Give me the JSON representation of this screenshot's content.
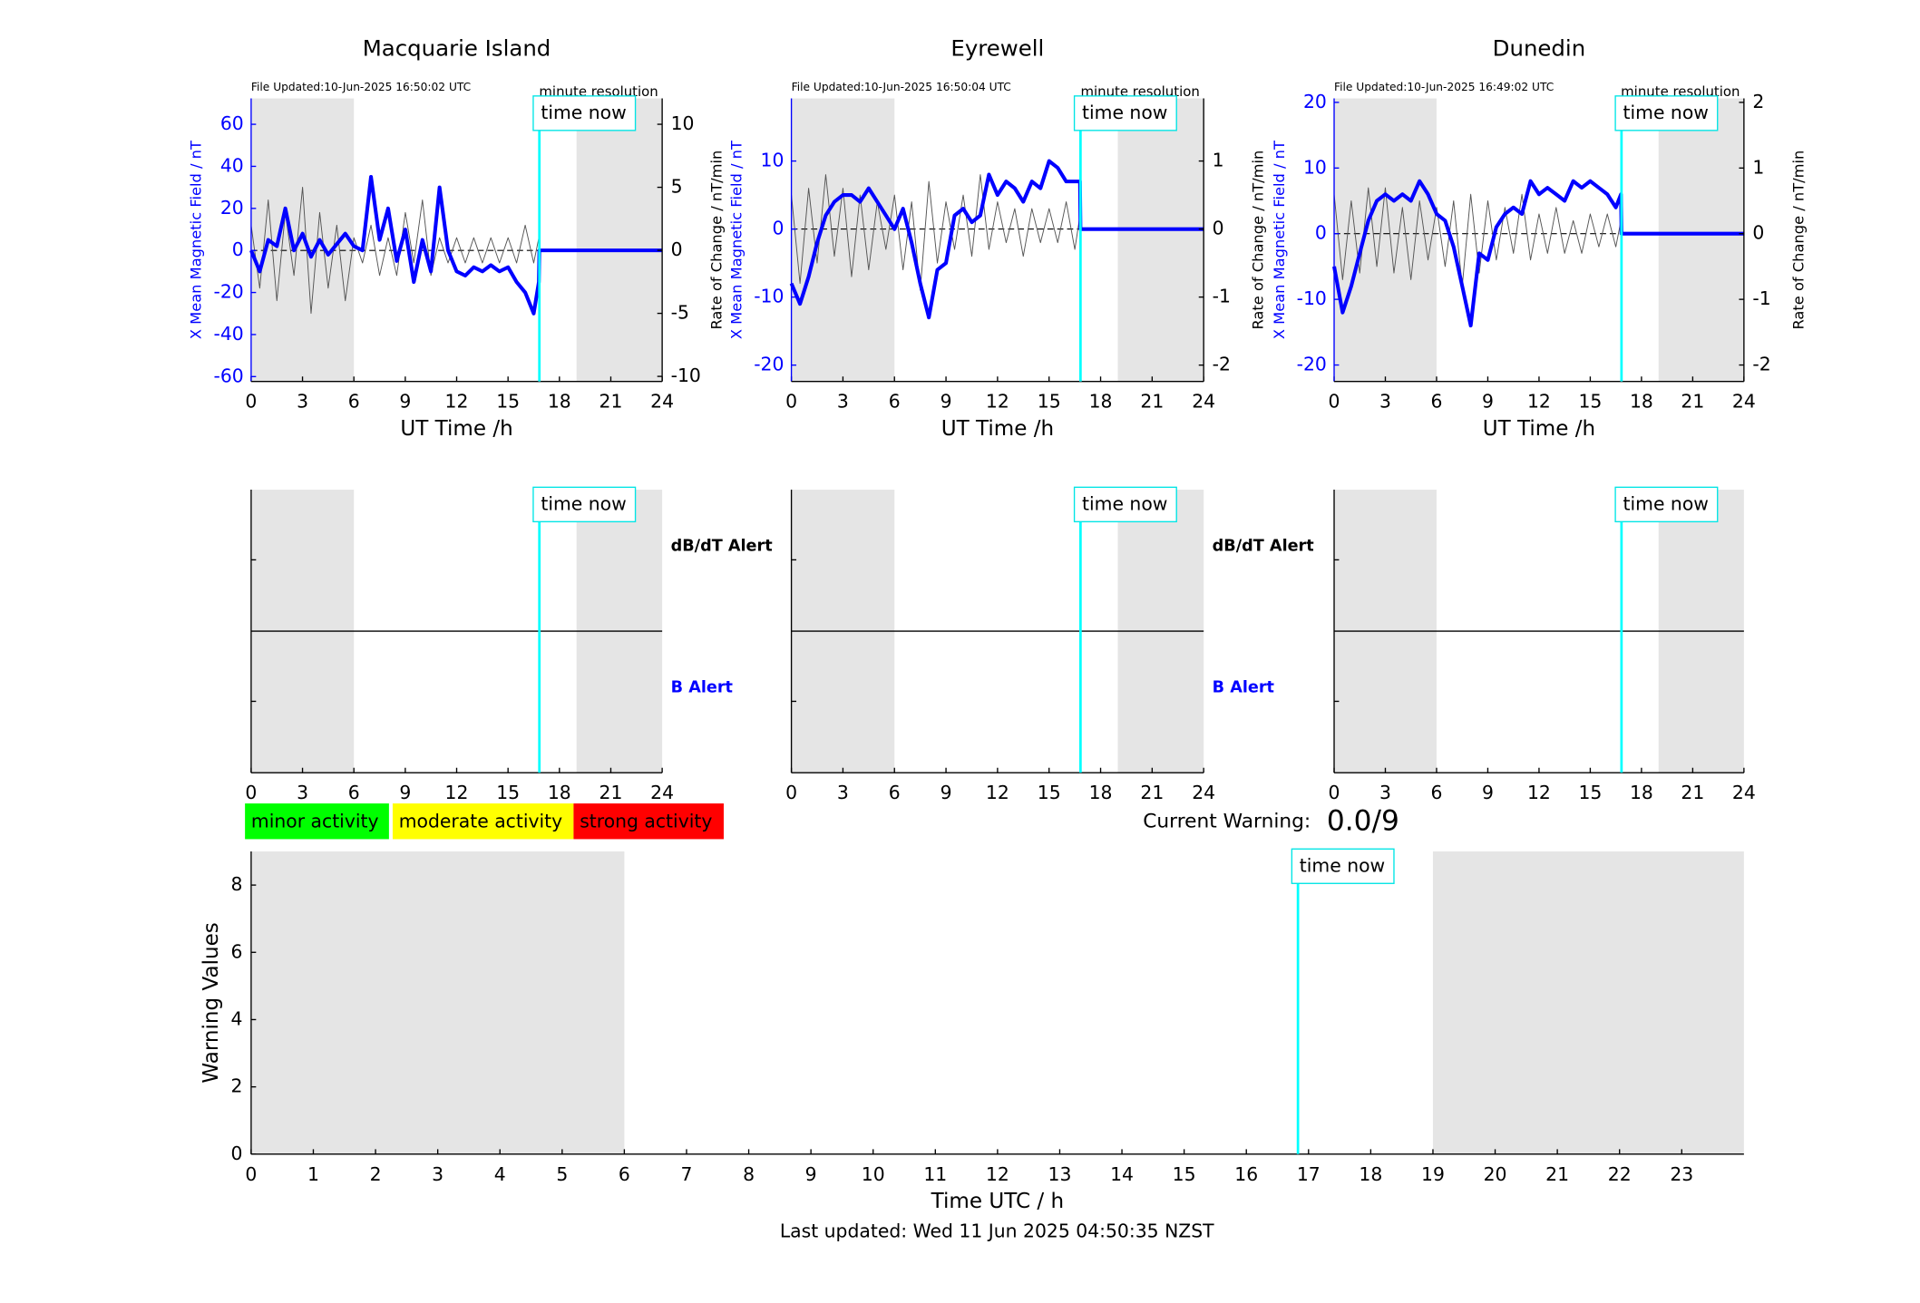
{
  "chart_data": [
    {
      "type": "line",
      "title": "Macquarie Island",
      "file_updated": "File Updated:10-Jun-2025 16:50:02 UTC",
      "resolution": "minute resolution",
      "xlabel": "UT Time /h",
      "xlim": [
        0,
        24
      ],
      "xticks": [
        0,
        3,
        6,
        9,
        12,
        15,
        18,
        21,
        24
      ],
      "ylim": [
        -62.3,
        72.3
      ],
      "yticks": [
        -60,
        -40,
        -20,
        0,
        20,
        40,
        60
      ],
      "y2lim": [
        -10.4,
        12.05
      ],
      "y2ticks": [
        -10,
        -5,
        0,
        5,
        10
      ],
      "shaded": [
        [
          0,
          6
        ],
        [
          19,
          24
        ]
      ],
      "time_now": {
        "value": 16.83,
        "label": "time now"
      },
      "x": [
        0,
        0.5,
        1,
        1.5,
        2,
        2.5,
        3,
        3.5,
        4,
        4.5,
        5,
        5.5,
        6,
        6.5,
        7,
        7.5,
        8,
        8.5,
        9,
        9.5,
        10,
        10.5,
        11,
        11.5,
        12,
        12.5,
        13,
        13.5,
        14,
        14.5,
        15,
        15.5,
        16,
        16.5,
        16.8,
        16.83,
        24
      ],
      "series": [
        {
          "name": "Rate of Change / nT/min",
          "color": "#555555",
          "axis": "y2",
          "values": [
            2,
            -3,
            4,
            -4,
            3,
            -2,
            5,
            -5,
            3,
            -3,
            2,
            -4,
            1,
            -1,
            2,
            -2,
            1,
            -2,
            3,
            -1,
            4,
            -2,
            1,
            -1,
            1,
            -1,
            1,
            -1,
            1,
            -1,
            1,
            -1,
            2,
            -1,
            1,
            null,
            null
          ]
        },
        {
          "name": "X Mean Magnetic Field / nT",
          "color": "#0000ff",
          "values": [
            0,
            -10,
            5,
            2,
            20,
            0,
            8,
            -3,
            5,
            -2,
            3,
            8,
            2,
            0,
            35,
            5,
            20,
            -5,
            10,
            -15,
            5,
            -10,
            30,
            0,
            -10,
            -12,
            -8,
            -10,
            -7,
            -10,
            -8,
            -15,
            -20,
            -30,
            -15,
            0,
            0
          ]
        }
      ]
    },
    {
      "type": "line",
      "title": "Eyrewell",
      "file_updated": "File Updated:10-Jun-2025 16:50:04 UTC",
      "resolution": "minute resolution",
      "xlabel": "UT Time /h",
      "xlim": [
        0,
        24
      ],
      "xticks": [
        0,
        3,
        6,
        9,
        12,
        15,
        18,
        21,
        24
      ],
      "ylim": [
        -22.4,
        19.2
      ],
      "yticks": [
        -20,
        -10,
        0,
        10
      ],
      "y2lim": [
        -2.24,
        1.92
      ],
      "y2ticks": [
        -2,
        -1,
        0,
        1
      ],
      "shaded": [
        [
          0,
          6
        ],
        [
          19,
          24
        ]
      ],
      "time_now": {
        "value": 16.83,
        "label": "time now"
      },
      "x": [
        0,
        0.5,
        1,
        1.5,
        2,
        2.5,
        3,
        3.5,
        4,
        4.5,
        5,
        5.5,
        6,
        6.5,
        7,
        7.5,
        8,
        8.5,
        9,
        9.5,
        10,
        10.5,
        11,
        11.5,
        12,
        12.5,
        13,
        13.5,
        14,
        14.5,
        15,
        15.5,
        16,
        16.5,
        16.8,
        16.83,
        24
      ],
      "series": [
        {
          "name": "Rate of Change / nT/min",
          "color": "#555555",
          "axis": "y2",
          "values": [
            0.5,
            -0.8,
            0.6,
            -0.5,
            0.8,
            -0.4,
            0.6,
            -0.7,
            0.5,
            -0.6,
            0.4,
            -0.3,
            0.5,
            -0.6,
            0.4,
            -0.9,
            0.7,
            -0.5,
            0.4,
            -0.3,
            0.5,
            -0.4,
            0.8,
            -0.3,
            0.4,
            -0.2,
            0.3,
            -0.4,
            0.3,
            -0.2,
            0.3,
            -0.2,
            0.4,
            -0.3,
            0.2,
            null,
            null
          ]
        },
        {
          "name": "X Mean Magnetic Field / nT",
          "color": "#0000ff",
          "values": [
            -8,
            -11,
            -7,
            -2,
            2,
            4,
            5,
            5,
            4,
            6,
            4,
            2,
            0,
            3,
            -2,
            -8,
            -13,
            -6,
            -5,
            2,
            3,
            1,
            2,
            8,
            5,
            7,
            6,
            4,
            7,
            6,
            10,
            9,
            7,
            7,
            7,
            0,
            0
          ]
        }
      ]
    },
    {
      "type": "line",
      "title": "Dunedin",
      "file_updated": "File Updated:10-Jun-2025 16:49:02 UTC",
      "resolution": "minute resolution",
      "xlabel": "UT Time /h",
      "xlim": [
        0,
        24
      ],
      "xticks": [
        0,
        3,
        6,
        9,
        12,
        15,
        18,
        21,
        24
      ],
      "ylim": [
        -22.5,
        20.6
      ],
      "yticks": [
        -20,
        -10,
        0,
        10,
        20
      ],
      "y2lim": [
        -2.25,
        2.06
      ],
      "y2ticks": [
        -2,
        -1,
        0,
        1,
        2
      ],
      "shaded": [
        [
          0,
          6
        ],
        [
          19,
          24
        ]
      ],
      "time_now": {
        "value": 16.83,
        "label": "time now"
      },
      "x": [
        0,
        0.5,
        1,
        1.5,
        2,
        2.5,
        3,
        3.5,
        4,
        4.5,
        5,
        5.5,
        6,
        6.5,
        7,
        7.5,
        8,
        8.5,
        9,
        9.5,
        10,
        10.5,
        11,
        11.5,
        12,
        12.5,
        13,
        13.5,
        14,
        14.5,
        15,
        15.5,
        16,
        16.5,
        16.8,
        16.83,
        24
      ],
      "series": [
        {
          "name": "Rate of Change / nT/min",
          "color": "#555555",
          "axis": "y2",
          "values": [
            0.6,
            -0.7,
            0.5,
            -0.6,
            0.7,
            -0.5,
            0.7,
            -0.6,
            0.4,
            -0.7,
            0.5,
            -0.4,
            0.4,
            -0.5,
            0.5,
            -0.8,
            0.6,
            -0.6,
            0.5,
            -0.4,
            0.4,
            -0.3,
            0.6,
            -0.4,
            0.3,
            -0.3,
            0.4,
            -0.3,
            0.2,
            -0.3,
            0.3,
            -0.2,
            0.3,
            -0.2,
            0.2,
            null,
            null
          ]
        },
        {
          "name": "X Mean Magnetic Field / nT",
          "color": "#0000ff",
          "values": [
            -5,
            -12,
            -8,
            -3,
            2,
            5,
            6,
            5,
            6,
            5,
            8,
            6,
            3,
            2,
            -2,
            -8,
            -14,
            -3,
            -4,
            1,
            3,
            4,
            3,
            8,
            6,
            7,
            6,
            5,
            8,
            7,
            8,
            7,
            6,
            4,
            6,
            0,
            0
          ]
        }
      ]
    },
    {
      "type": "alert",
      "xlim": [
        0,
        24
      ],
      "xticks": [
        0,
        3,
        6,
        9,
        12,
        15,
        18,
        21,
        24
      ],
      "shaded": [
        [
          0,
          6
        ],
        [
          19,
          24
        ]
      ],
      "time_now": {
        "value": 16.83,
        "label": "time now"
      },
      "alerts": [
        {
          "label": "dB/dT Alert",
          "color": "#000000"
        },
        {
          "label": "B Alert",
          "color": "#0000ff"
        }
      ]
    },
    {
      "type": "alert",
      "xlim": [
        0,
        24
      ],
      "xticks": [
        0,
        3,
        6,
        9,
        12,
        15,
        18,
        21,
        24
      ],
      "shaded": [
        [
          0,
          6
        ],
        [
          19,
          24
        ]
      ],
      "time_now": {
        "value": 16.83,
        "label": "time now"
      },
      "alerts": [
        {
          "label": "dB/dT Alert",
          "color": "#000000"
        },
        {
          "label": "B Alert",
          "color": "#0000ff"
        }
      ]
    },
    {
      "type": "alert",
      "xlim": [
        0,
        24
      ],
      "xticks": [
        0,
        3,
        6,
        9,
        12,
        15,
        18,
        21,
        24
      ],
      "shaded": [
        [
          0,
          6
        ],
        [
          19,
          24
        ]
      ],
      "time_now": {
        "value": 16.83,
        "label": "time now"
      }
    },
    {
      "type": "bar",
      "xlabel": "Time UTC / h",
      "ylabel": "Warning Values",
      "xlim": [
        0,
        24
      ],
      "xticks": [
        0,
        1,
        2,
        3,
        4,
        5,
        6,
        7,
        8,
        9,
        10,
        11,
        12,
        13,
        14,
        15,
        16,
        17,
        18,
        19,
        20,
        21,
        22,
        23
      ],
      "ylim": [
        0,
        9
      ],
      "yticks": [
        0,
        2,
        4,
        6,
        8
      ],
      "shaded": [
        [
          0,
          6
        ],
        [
          19,
          24
        ]
      ],
      "time_now": {
        "value": 16.83,
        "label": "time now"
      },
      "legend": [
        {
          "label": "minor activity",
          "color": "#00ff00"
        },
        {
          "label": "moderate activity",
          "color": "#ffff00"
        },
        {
          "label": "strong activity",
          "color": "#ff0000"
        }
      ],
      "current_warning_label": "Current Warning:",
      "current_warning": "0.0/9",
      "footer": "Last updated: Wed 11 Jun 2025 04:50:35 NZST"
    }
  ]
}
